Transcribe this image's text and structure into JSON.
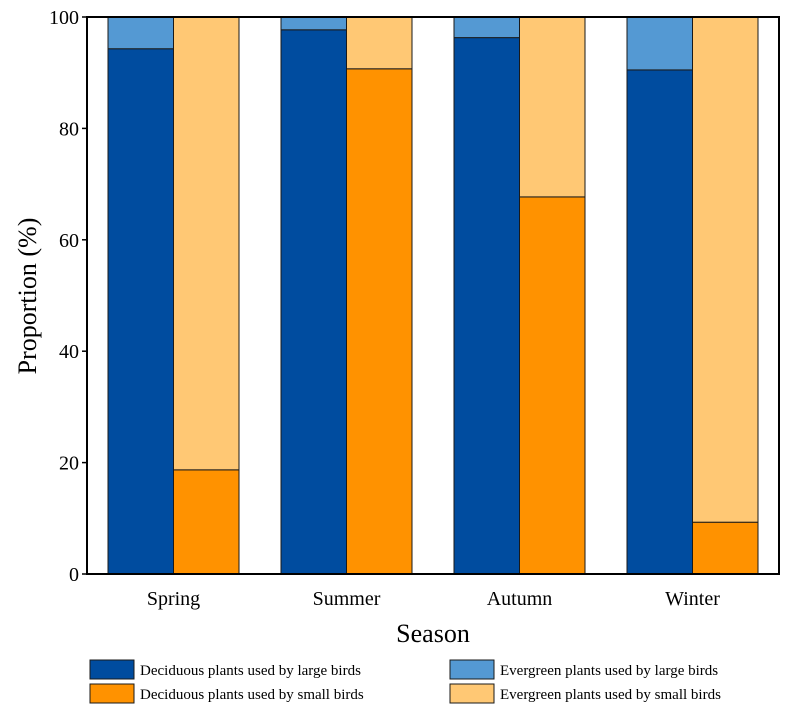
{
  "chart_data": {
    "type": "bar",
    "stacked": true,
    "title": "",
    "xlabel": "Season",
    "ylabel": "Proportion (%)",
    "ylim": [
      0,
      100
    ],
    "yticks": [
      "0",
      "20",
      "40",
      "60",
      "80",
      "100"
    ],
    "categories": [
      "Spring",
      "Summer",
      "Autumn",
      "Winter"
    ],
    "groups": [
      {
        "name": "large birds",
        "series": [
          {
            "name": "Deciduous plants used by large birds",
            "color": "#004c9f",
            "values": [
              94.3,
              97.7,
              96.3,
              90.5
            ]
          },
          {
            "name": "Evergreen plants used by large birds",
            "color": "#5499d3",
            "values": [
              5.7,
              2.3,
              3.7,
              9.5
            ]
          }
        ]
      },
      {
        "name": "small birds",
        "series": [
          {
            "name": "Deciduous plants used by small birds",
            "color": "#ff9200",
            "values": [
              18.7,
              90.7,
              67.7,
              9.3
            ]
          },
          {
            "name": "Evergreen plants used by small birds",
            "color": "#ffc874",
            "values": [
              81.3,
              9.3,
              32.3,
              90.7
            ]
          }
        ]
      }
    ],
    "legend": {
      "placement": "bottom",
      "items": [
        "Deciduous plants used by large birds",
        "Evergreen plants used by large birds",
        "Deciduous plants used by small birds",
        "Evergreen plants used by small birds"
      ]
    },
    "grid": false
  }
}
